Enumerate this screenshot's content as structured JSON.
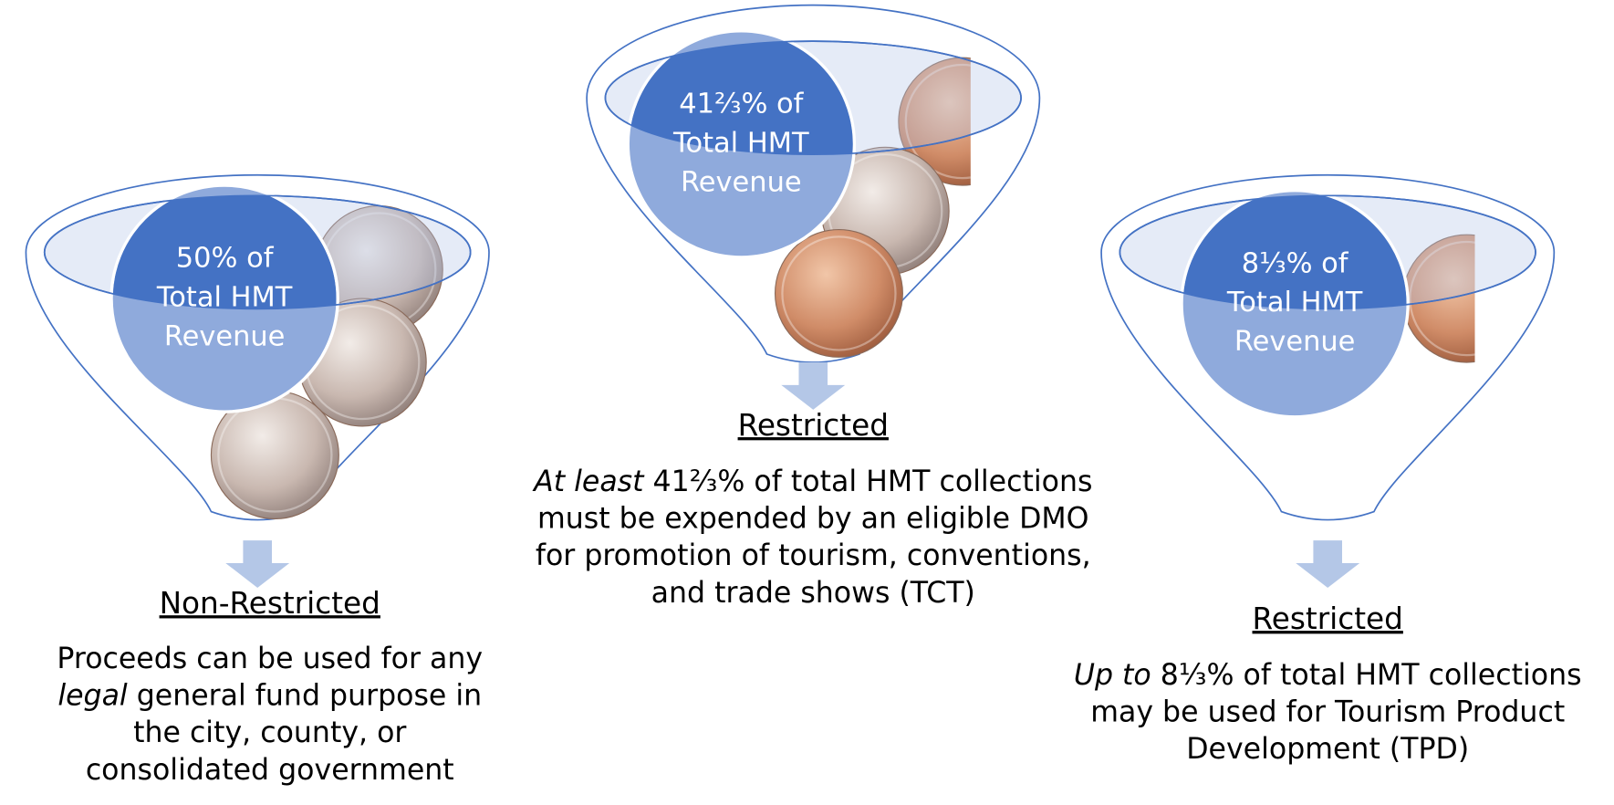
{
  "panels": [
    {
      "circle_lines": [
        "50% of",
        "Total HMT",
        "Revenue"
      ],
      "heading": "Non-Restricted",
      "description": [
        {
          "text": "Proceeds can be used for any "
        },
        {
          "text": "legal",
          "italic": true
        },
        {
          "text": " general fund purpose in the city, county, or consolidated government"
        }
      ]
    },
    {
      "circle_lines": [
        "41⅔% of",
        "Total HMT",
        "Revenue"
      ],
      "heading": "Restricted",
      "description": [
        {
          "text": "At least",
          "italic": true
        },
        {
          "text": " 41⅔% of total HMT collections must be expended by an eligible DMO for promotion of tourism, conventions, and trade shows (TCT)"
        }
      ]
    },
    {
      "circle_lines": [
        "8⅓% of",
        "Total HMT",
        "Revenue"
      ],
      "heading": "Restricted",
      "description": [
        {
          "text": "Up to",
          "italic": true
        },
        {
          "text": " 8⅓% of total HMT collections may be used for Tourism Product Development (TPD)"
        }
      ]
    }
  ]
}
